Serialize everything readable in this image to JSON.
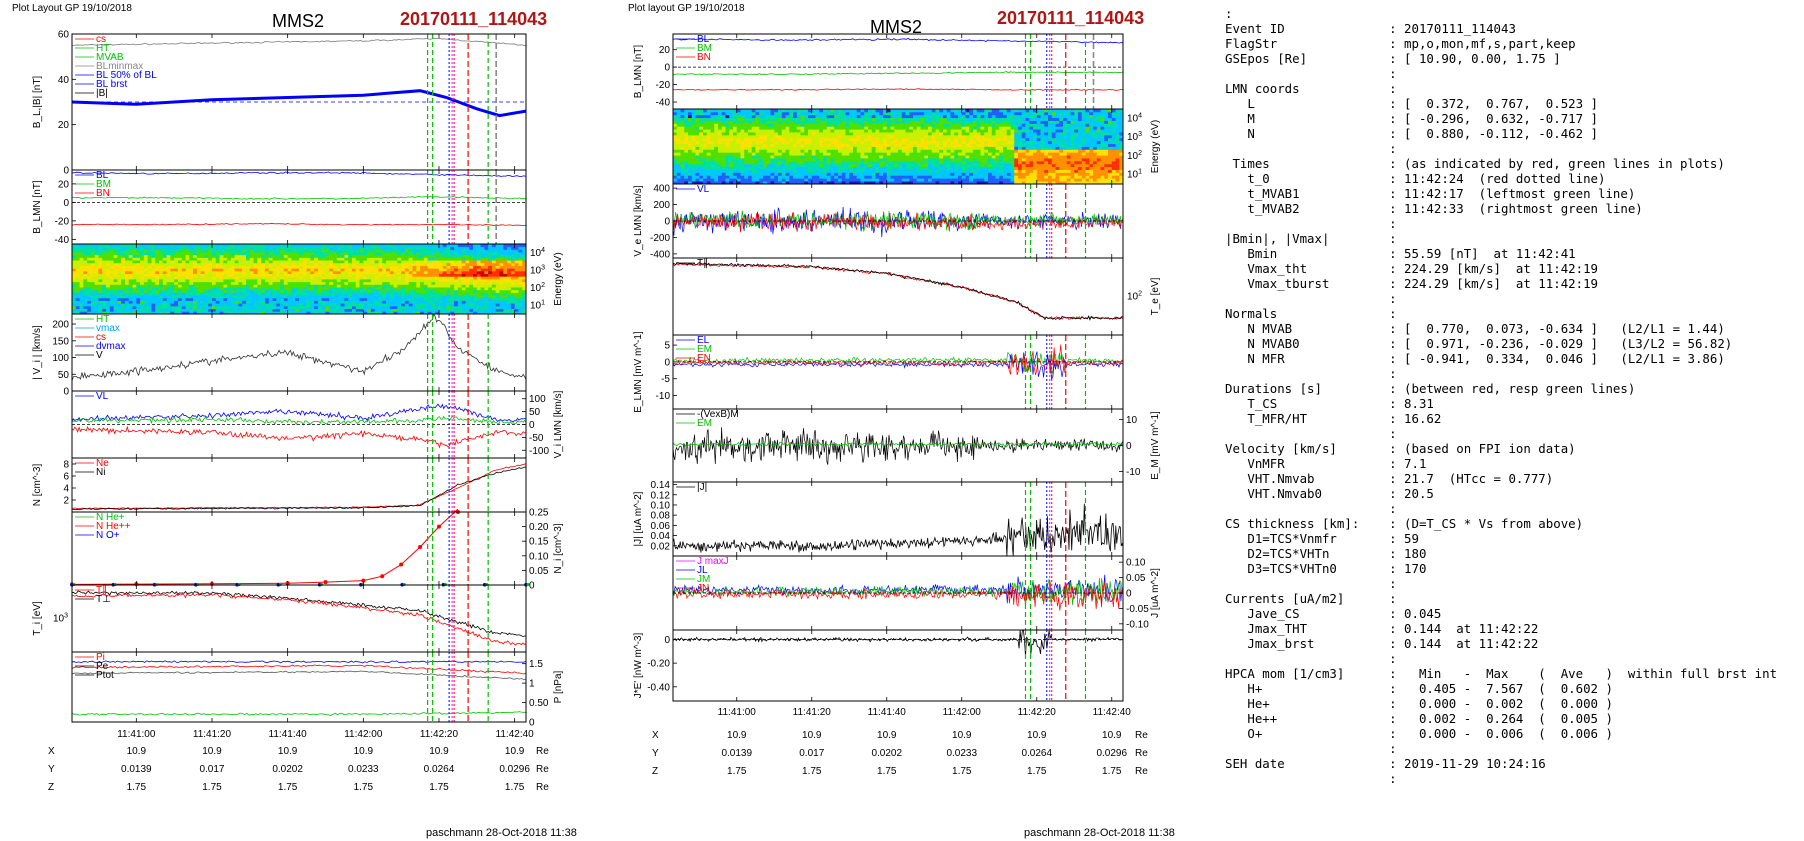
{
  "header": {
    "left_layout": "Plot Layout GP 19/10/2018",
    "right_layout": "Plot layout GP 19/10/2018",
    "spacecraft": "MMS2",
    "event": "20170111_114043",
    "footer": "paschmann 28-Oct-2018 11:38"
  },
  "orbit_table": {
    "times": [
      "11:41:00",
      "11:41:20",
      "11:41:40",
      "11:42:00",
      "11:42:20",
      "11:42:40"
    ],
    "rows": [
      {
        "label": "X",
        "values": [
          "10.9",
          "10.9",
          "10.9",
          "10.9",
          "10.9",
          "10.9"
        ],
        "unit": "Re"
      },
      {
        "label": "Y",
        "values": [
          "0.0139",
          "0.017",
          "0.0202",
          "0.0233",
          "0.0264",
          "0.0296"
        ],
        "unit": "Re"
      },
      {
        "label": "Z",
        "values": [
          "1.75",
          "1.75",
          "1.75",
          "1.75",
          "1.75",
          "1.75"
        ],
        "unit": "Re"
      }
    ]
  },
  "colors": {
    "red": "#ff0000",
    "green": "#00c000",
    "blue": "#0000ff",
    "magenta": "#ff00ff",
    "black": "#000000",
    "gray": "#888888",
    "cyan": "#00a0ff"
  },
  "markers": {
    "t_mvab1": "11:42:17",
    "t_0": "11:42:24",
    "t_mvab2": "11:42:33"
  },
  "chart_data": [
    {
      "type": "line",
      "panel": "B_L,|B|",
      "ylabel": "B_L,|B| [nT]",
      "ylim": [
        0,
        60
      ],
      "yticks": [
        0,
        20,
        40,
        60
      ],
      "legend": [
        "cs",
        "HT",
        "MVAB",
        "BLminmax",
        "BL 50% of BL",
        "BL brst",
        "|B|"
      ],
      "series": [
        {
          "name": "|B|",
          "x": [
            "11:40:43",
            "11:41:20",
            "11:42:00",
            "11:42:20",
            "11:42:43"
          ],
          "values": [
            55,
            56,
            57,
            58,
            55
          ]
        },
        {
          "name": "BL brst",
          "x": [
            "11:40:43",
            "11:41:00",
            "11:41:20",
            "11:41:40",
            "11:42:00",
            "11:42:15",
            "11:42:22",
            "11:42:30",
            "11:42:36",
            "11:42:43"
          ],
          "values": [
            30,
            29,
            31,
            32,
            33,
            35,
            32,
            27,
            24,
            26
          ]
        }
      ]
    },
    {
      "type": "line",
      "panel": "B_LMN",
      "ylabel": "B_LMN [nT]",
      "ylim": [
        -45,
        35
      ],
      "yticks": [
        -40,
        -20,
        0,
        20
      ],
      "legend": [
        "BL",
        "BM",
        "BN"
      ],
      "series": [
        {
          "name": "BL",
          "values": [
            32,
            31,
            32,
            32,
            30,
            28
          ]
        },
        {
          "name": "BM",
          "values": [
            5,
            5,
            4,
            4,
            6,
            4
          ]
        },
        {
          "name": "BN",
          "values": [
            -24,
            -24,
            -23,
            -24,
            -24,
            -25
          ]
        }
      ]
    },
    {
      "type": "heatmap",
      "panel": "ion energy spectrogram",
      "ylabel": "Energy (eV)",
      "yticks": [
        "10^1",
        "10^2",
        "10^3",
        "10^4"
      ]
    },
    {
      "type": "line",
      "panel": "|Vi|",
      "ylabel": "| V_i | [km/s]",
      "ylim": [
        0,
        230
      ],
      "yticks": [
        0,
        50,
        100,
        150,
        200
      ],
      "legend": [
        "HT",
        "vmax",
        "cs",
        "dvmax",
        "V"
      ],
      "series": [
        {
          "name": "V",
          "x": [
            "11:40:43",
            "11:41:00",
            "11:41:20",
            "11:41:40",
            "11:42:00",
            "11:42:10",
            "11:42:19",
            "11:42:25",
            "11:42:35",
            "11:42:43"
          ],
          "values": [
            40,
            60,
            90,
            115,
            60,
            120,
            224,
            130,
            60,
            40
          ]
        }
      ]
    },
    {
      "type": "line",
      "panel": "V_i,LMN",
      "ylabel": "V_i LMN [km/s]",
      "ylim": [
        -130,
        130
      ],
      "yticks": [
        -100,
        -50,
        0,
        50,
        100
      ],
      "legend": [
        "VL"
      ]
    },
    {
      "type": "line",
      "panel": "N",
      "ylabel": "N [cm^-3]",
      "ylim": [
        0,
        9
      ],
      "yticks": [
        2,
        4,
        6,
        8
      ],
      "legend": [
        "Ne",
        "Ni"
      ],
      "series": [
        {
          "name": "Ne",
          "x": [
            "11:40:43",
            "11:42:00",
            "11:42:15",
            "11:42:25",
            "11:42:35",
            "11:42:43"
          ],
          "values": [
            0.6,
            0.8,
            1.2,
            4.0,
            7.0,
            8.0
          ]
        },
        {
          "name": "Ni",
          "x": [
            "11:40:43",
            "11:42:00",
            "11:42:15",
            "11:42:25",
            "11:42:35",
            "11:42:43"
          ],
          "values": [
            0.5,
            0.7,
            1.1,
            4.5,
            6.5,
            7.5
          ]
        }
      ]
    },
    {
      "type": "line",
      "panel": "N_i species",
      "ylabel": "N_i [cm^-3]",
      "ylim": [
        0,
        0.25
      ],
      "yticks": [
        0,
        0.05,
        0.1,
        0.15,
        0.2,
        0.25
      ],
      "legend": [
        "N He+",
        "N He++",
        "N O+"
      ],
      "series": [
        {
          "name": "N He++",
          "x": [
            "11:40:43",
            "11:41:00",
            "11:41:20",
            "11:41:40",
            "11:41:50",
            "11:42:00",
            "11:42:05",
            "11:42:10",
            "11:42:15",
            "11:42:20",
            "11:42:25"
          ],
          "values": [
            0.002,
            0.003,
            0.004,
            0.006,
            0.01,
            0.015,
            0.03,
            0.07,
            0.13,
            0.2,
            0.26
          ]
        }
      ]
    },
    {
      "type": "line",
      "panel": "T_i",
      "ylabel": "T_i [eV]",
      "yticks": [
        "10^3"
      ],
      "legend": [
        "T∥",
        "T⊥"
      ]
    },
    {
      "type": "line",
      "panel": "P",
      "ylabel": "P [nPa]",
      "ylim": [
        0,
        1.8
      ],
      "yticks": [
        0,
        0.5,
        1.0,
        1.5
      ],
      "legend": [
        "Pi",
        "Pe",
        "Ptot"
      ]
    },
    {
      "type": "line",
      "panel": "B_LMN (right)",
      "ylabel": "B_LMN [nT]",
      "ylim": [
        -48,
        38
      ],
      "yticks": [
        -40,
        -20,
        0,
        20
      ],
      "legend": [
        "BL",
        "BM",
        "BN"
      ]
    },
    {
      "type": "heatmap",
      "panel": "electron energy spectrogram",
      "ylabel": "Energy (eV)",
      "yticks": [
        "10^1",
        "10^2",
        "10^3",
        "10^4"
      ]
    },
    {
      "type": "line",
      "panel": "V_e,LMN",
      "ylabel": "V_e LMN [km/s]",
      "ylim": [
        -450,
        450
      ],
      "yticks": [
        -400,
        -200,
        0,
        200,
        400
      ],
      "legend": [
        "VL"
      ]
    },
    {
      "type": "line",
      "panel": "T_e",
      "ylabel": "T_e [eV]",
      "yticks": [
        "10^2"
      ],
      "legend": [
        "T∥"
      ]
    },
    {
      "type": "line",
      "panel": "E_LMN",
      "ylabel": "E_LMN [mV m^-1]",
      "ylim": [
        -14,
        8
      ],
      "yticks": [
        -10,
        -5,
        0,
        5
      ],
      "legend": [
        "EL",
        "EM",
        "EN"
      ]
    },
    {
      "type": "line",
      "panel": "E_M",
      "ylabel": "E_M [mV m^-1]",
      "ylim": [
        -14,
        14
      ],
      "yticks": [
        -10,
        0,
        10
      ],
      "legend": [
        "-(VexB)M",
        "EM"
      ]
    },
    {
      "type": "line",
      "panel": "|J|",
      "ylabel": "|J| [uA m^-2]",
      "ylim": [
        0,
        0.145
      ],
      "yticks": [
        0.02,
        0.04,
        0.06,
        0.08,
        0.1,
        0.12,
        0.14
      ],
      "legend": [
        "|J|"
      ]
    },
    {
      "type": "line",
      "panel": "J_LMN",
      "ylabel": "J [uA m^-2]",
      "ylim": [
        -0.12,
        0.12
      ],
      "yticks": [
        -0.1,
        -0.05,
        0.0,
        0.05,
        0.1
      ],
      "legend": [
        "J maxJ",
        "JL",
        "JM",
        "JN"
      ]
    },
    {
      "type": "line",
      "panel": "J*E'",
      "ylabel": "J*E' [nW m^-3]",
      "ylim": [
        -0.52,
        0.08
      ],
      "yticks": [
        -0.4,
        -0.2,
        0.0
      ],
      "legend": []
    }
  ],
  "info_lines": [
    ":",
    "Event ID              : 20170111_114043",
    "FlagStr               : mp,o,mon,mf,s,part,keep",
    "GSEpos [Re]           : [ 10.90, 0.00, 1.75 ]",
    "                      :",
    "LMN coords            :",
    "   L                  : [  0.372,  0.767,  0.523 ]",
    "   M                  : [ -0.296,  0.632, -0.717 ]",
    "   N                  : [  0.880, -0.112, -0.462 ]",
    "                      :",
    " Times                : (as indicated by red, green lines in plots)",
    "   t_0                : 11:42:24  (red dotted line)",
    "   t_MVAB1            : 11:42:17  (leftmost green line)",
    "   t_MVAB2            : 11:42:33  (rightmost green line)",
    "                      :",
    "|Bmin|, |Vmax|        :",
    "   Bmin               : 55.59 [nT]  at 11:42:41",
    "   Vmax_tht           : 224.29 [km/s]  at 11:42:19",
    "   Vmax_tburst        : 224.29 [km/s]  at 11:42:19",
    "                      :",
    "Normals               :",
    "   N MVAB             : [  0.770,  0.073, -0.634 ]   (L2/L1 = 1.44)",
    "   N MVAB0            : [  0.971, -0.236, -0.029 ]   (L3/L2 = 56.82)",
    "   N MFR              : [ -0.941,  0.334,  0.046 ]   (L2/L1 = 3.86)",
    "                      :",
    "Durations [s]         : (between red, resp green lines)",
    "   T_CS               : 8.31",
    "   T_MFR/HT           : 16.62",
    "                      :",
    "Velocity [km/s]       : (based on FPI ion data)",
    "   VnMFR              : 7.1",
    "   VHT.Nmvab          : 21.7  (HTcc = 0.777)",
    "   VHT.Nmvab0         : 20.5",
    "                      :",
    "CS thickness [km]:    : (D=T_CS * Vs from above)",
    "   D1=TCS*Vnmfr       : 59",
    "   D2=TCS*VHTn        : 180",
    "   D3=TCS*VHTn0       : 170",
    "                      :",
    "Currents [uA/m2]      :",
    "   Jave_CS            : 0.045",
    "   Jmax_THT           : 0.144  at 11:42:22",
    "   Jmax_brst          : 0.144  at 11:42:22",
    "                      :",
    "HPCA mom [1/cm3]      :   Min   -  Max    (  Ave   )  within full brst int",
    "   H+                 :   0.405 -  7.567  (  0.602 )",
    "   He+                :   0.000 -  0.002  (  0.000 )",
    "   He++               :   0.002 -  0.264  (  0.005 )",
    "   O+                 :   0.000 -  0.006  (  0.006 )",
    "                      :",
    "SEH date              : 2019-11-29 10:24:16",
    "                      :"
  ]
}
